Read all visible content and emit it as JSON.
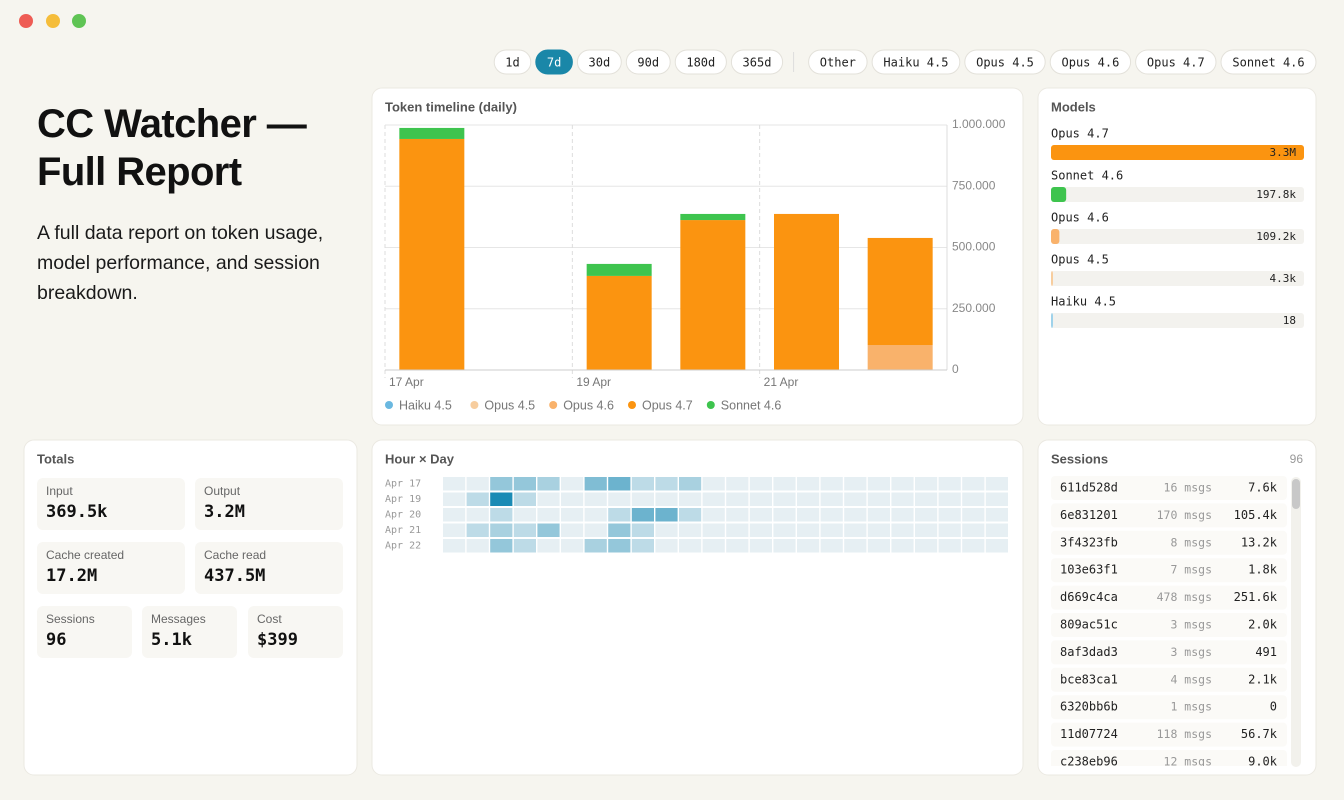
{
  "header": {
    "title": "CC Watcher — Full Report",
    "subtitle": "A full data report on token usage, model performance, and session breakdown."
  },
  "range_buttons": [
    {
      "label": "1d"
    },
    {
      "label": "7d",
      "selected": true
    },
    {
      "label": "30d"
    },
    {
      "label": "90d"
    },
    {
      "label": "180d"
    },
    {
      "label": "365d"
    }
  ],
  "model_filters": [
    "Other",
    "Haiku 4.5",
    "Opus 4.5",
    "Opus 4.6",
    "Opus 4.7",
    "Sonnet 4.6"
  ],
  "chart_data": {
    "type": "bar",
    "stacked": true,
    "title": "Token timeline (daily)",
    "categories": [
      "17 Apr",
      null,
      "19 Apr",
      null,
      "21 Apr",
      null
    ],
    "series": [
      {
        "name": "Haiku 4.5",
        "color": "#6ab8e0",
        "values": [
          0,
          0,
          0,
          0,
          0,
          0
        ]
      },
      {
        "name": "Opus 4.5",
        "color": "#f7cd9e",
        "values": [
          0,
          0,
          0,
          0,
          0,
          0
        ]
      },
      {
        "name": "Opus 4.6",
        "color": "#f9b26b",
        "values": [
          0,
          0,
          0,
          0,
          0,
          102000
        ]
      },
      {
        "name": "Opus 4.7",
        "color": "#fb9410",
        "values": [
          943000,
          0,
          384000,
          612000,
          637000,
          437000
        ]
      },
      {
        "name": "Sonnet 4.6",
        "color": "#3ec44e",
        "values": [
          45000,
          0,
          49000,
          25000,
          0,
          0
        ]
      }
    ],
    "ylim": [
      0,
      1000000
    ],
    "yticks": [
      0,
      {
        "value": 250000,
        "label": "250.000"
      },
      {
        "value": 500000,
        "label": "500.000"
      },
      {
        "value": 750000,
        "label": "750.000"
      },
      {
        "value": 1000000,
        "label": "1.000.000"
      }
    ],
    "grid": true,
    "legend": "bottom"
  },
  "models": {
    "title": "Models",
    "items": [
      {
        "name": "Opus 4.7",
        "value": 3300000,
        "value_label": "3.3M",
        "color": "#fb9410"
      },
      {
        "name": "Sonnet 4.6",
        "value": 197800,
        "value_label": "197.8k",
        "color": "#3ec44e"
      },
      {
        "name": "Opus 4.6",
        "value": 109200,
        "value_label": "109.2k",
        "color": "#f9b26b"
      },
      {
        "name": "Opus 4.5",
        "value": 4300,
        "value_label": "4.3k",
        "color": "#f7cd9e"
      },
      {
        "name": "Haiku 4.5",
        "value": 18,
        "value_label": "18",
        "color": "#9fd2ea"
      }
    ]
  },
  "totals": {
    "title": "Totals",
    "cards": [
      {
        "label": "Input",
        "value": "369.5k"
      },
      {
        "label": "Output",
        "value": "3.2M"
      },
      {
        "label": "Cache created",
        "value": "17.2M"
      },
      {
        "label": "Cache read",
        "value": "437.5M"
      },
      {
        "label": "Sessions",
        "value": "96"
      },
      {
        "label": "Messages",
        "value": "5.1k"
      },
      {
        "label": "Cost",
        "value": "$399"
      }
    ]
  },
  "heatmap": {
    "title": "Hour × Day",
    "rows": [
      "Apr 17",
      "Apr 19",
      "Apr 20",
      "Apr 21",
      "Apr 22"
    ],
    "colors": [
      "#e6eff3",
      "#1a8bb5"
    ],
    "values": [
      [
        0,
        0,
        4,
        4,
        3,
        0,
        5,
        6,
        2,
        2,
        3,
        0,
        0,
        0,
        0,
        0,
        0,
        0,
        0,
        0,
        0,
        0,
        0,
        0
      ],
      [
        0,
        2,
        10,
        2,
        0,
        0,
        0,
        0,
        0,
        0,
        0,
        0,
        0,
        0,
        0,
        0,
        0,
        0,
        0,
        0,
        0,
        0,
        0,
        0
      ],
      [
        0,
        0,
        2,
        0,
        0,
        0,
        0,
        2,
        6,
        6,
        2,
        0,
        0,
        0,
        0,
        0,
        0,
        0,
        0,
        0,
        0,
        0,
        0,
        0
      ],
      [
        0,
        2,
        3,
        2,
        4,
        0,
        0,
        4,
        2,
        0,
        0,
        0,
        0,
        0,
        0,
        0,
        0,
        0,
        0,
        0,
        0,
        0,
        0,
        0
      ],
      [
        0,
        0,
        4,
        2,
        0,
        0,
        3,
        4,
        2,
        0,
        0,
        0,
        0,
        0,
        0,
        0,
        0,
        0,
        0,
        0,
        0,
        0,
        0,
        0
      ]
    ]
  },
  "sessions": {
    "title": "Sessions",
    "count": "96",
    "rows": [
      {
        "id": "611d528d",
        "messages": "16 msgs",
        "tokens": "7.6k"
      },
      {
        "id": "6e831201",
        "messages": "170 msgs",
        "tokens": "105.4k"
      },
      {
        "id": "3f4323fb",
        "messages": "8 msgs",
        "tokens": "13.2k"
      },
      {
        "id": "103e63f1",
        "messages": "7 msgs",
        "tokens": "1.8k"
      },
      {
        "id": "d669c4ca",
        "messages": "478 msgs",
        "tokens": "251.6k"
      },
      {
        "id": "809ac51c",
        "messages": "3 msgs",
        "tokens": "2.0k"
      },
      {
        "id": "8af3dad3",
        "messages": "3 msgs",
        "tokens": "491"
      },
      {
        "id": "bce83ca1",
        "messages": "4 msgs",
        "tokens": "2.1k"
      },
      {
        "id": "6320bb6b",
        "messages": "1 msgs",
        "tokens": "0"
      },
      {
        "id": "11d07724",
        "messages": "118 msgs",
        "tokens": "56.7k"
      },
      {
        "id": "c238eb96",
        "messages": "12 msgs",
        "tokens": "9.0k"
      }
    ]
  }
}
